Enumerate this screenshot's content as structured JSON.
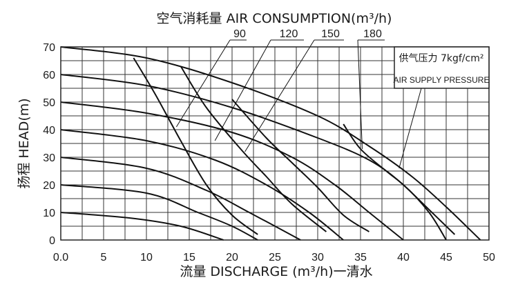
{
  "chart_data": {
    "type": "line",
    "title": "空气消耗量 AIR CONSUMPTION(m³/h)",
    "xlabel": "流量 DISCHARGE (m³/h)一清水",
    "ylabel": "扬程 HEAD(m)",
    "xlim": [
      0,
      50
    ],
    "ylim": [
      0,
      70
    ],
    "x_ticks": [
      "0.0",
      "5",
      "10",
      "15",
      "20",
      "25",
      "30",
      "35",
      "40",
      "45",
      "50"
    ],
    "y_ticks": [
      "0",
      "10",
      "20",
      "30",
      "40",
      "50",
      "60",
      "70"
    ],
    "grid": true,
    "air_consumption_labels": [
      "90",
      "120",
      "150",
      "180"
    ],
    "air_supply_box": {
      "line1": "供气压力 7kgf/cm²",
      "line2": "AIR SUPPLY PRESSURE"
    },
    "pressure_curves": [
      {
        "values": [
          [
            0,
            70
          ],
          [
            10,
            66
          ],
          [
            20,
            57
          ],
          [
            30,
            45
          ],
          [
            36,
            34
          ],
          [
            41,
            23
          ],
          [
            45,
            12
          ],
          [
            49,
            0
          ]
        ]
      },
      {
        "values": [
          [
            0,
            60
          ],
          [
            10,
            56
          ],
          [
            20,
            48
          ],
          [
            30,
            37
          ],
          [
            36,
            29
          ],
          [
            40,
            20
          ],
          [
            43,
            10
          ],
          [
            45,
            0
          ]
        ]
      },
      {
        "values": [
          [
            0,
            50
          ],
          [
            10,
            46
          ],
          [
            20,
            39
          ],
          [
            27,
            30
          ],
          [
            32,
            20
          ],
          [
            36,
            10
          ],
          [
            40,
            0
          ]
        ]
      },
      {
        "values": [
          [
            0,
            40
          ],
          [
            10,
            36
          ],
          [
            18,
            29
          ],
          [
            24,
            20
          ],
          [
            29,
            10
          ],
          [
            33,
            0
          ]
        ]
      },
      {
        "values": [
          [
            0,
            30
          ],
          [
            10,
            26
          ],
          [
            17,
            18
          ],
          [
            22,
            10
          ],
          [
            28,
            0
          ]
        ]
      },
      {
        "values": [
          [
            0,
            20
          ],
          [
            10,
            17
          ],
          [
            16,
            10
          ],
          [
            20,
            5
          ],
          [
            23,
            0
          ]
        ]
      },
      {
        "values": [
          [
            0,
            10
          ],
          [
            8,
            8
          ],
          [
            14,
            5
          ],
          [
            19,
            0
          ]
        ]
      }
    ],
    "air_curves": [
      {
        "name": "90",
        "values": [
          [
            8.5,
            66
          ],
          [
            11,
            53
          ],
          [
            14,
            36
          ],
          [
            17,
            20
          ],
          [
            20,
            9
          ],
          [
            23,
            2
          ]
        ]
      },
      {
        "name": "120",
        "values": [
          [
            14,
            63
          ],
          [
            17,
            48
          ],
          [
            21,
            33
          ],
          [
            24,
            23
          ],
          [
            27,
            13
          ],
          [
            31,
            3
          ]
        ]
      },
      {
        "name": "150",
        "values": [
          [
            20,
            51
          ],
          [
            24,
            37
          ],
          [
            27,
            28
          ],
          [
            30,
            19
          ],
          [
            33,
            9
          ],
          [
            36,
            3
          ]
        ]
      },
      {
        "name": "180",
        "values": [
          [
            33,
            42
          ],
          [
            35,
            33
          ],
          [
            38,
            25
          ],
          [
            40,
            20
          ],
          [
            43,
            11
          ],
          [
            46,
            2
          ]
        ]
      }
    ]
  }
}
